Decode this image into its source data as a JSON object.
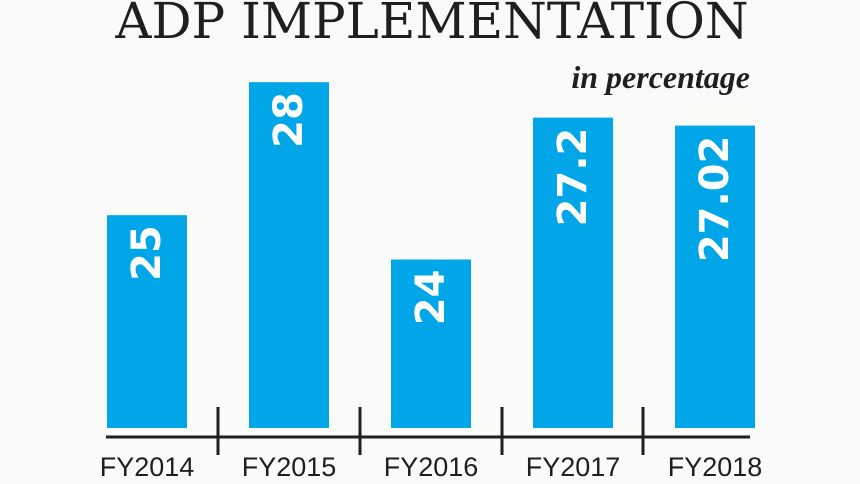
{
  "chart_data": {
    "type": "bar",
    "title": "ADP IMPLEMENTATION",
    "subtitle": "in percentage",
    "categories": [
      "FY2014",
      "FY2015",
      "FY2016",
      "FY2017",
      "FY2018"
    ],
    "values": [
      25,
      28,
      24,
      27.2,
      27.02
    ],
    "data_labels": [
      "25",
      "28",
      "24",
      "27.2",
      "27.02"
    ],
    "ylim": [
      20.2,
      28.5
    ],
    "grid": false,
    "bar_color": "#00a6e8",
    "axis_color": "#1f1f1f"
  }
}
